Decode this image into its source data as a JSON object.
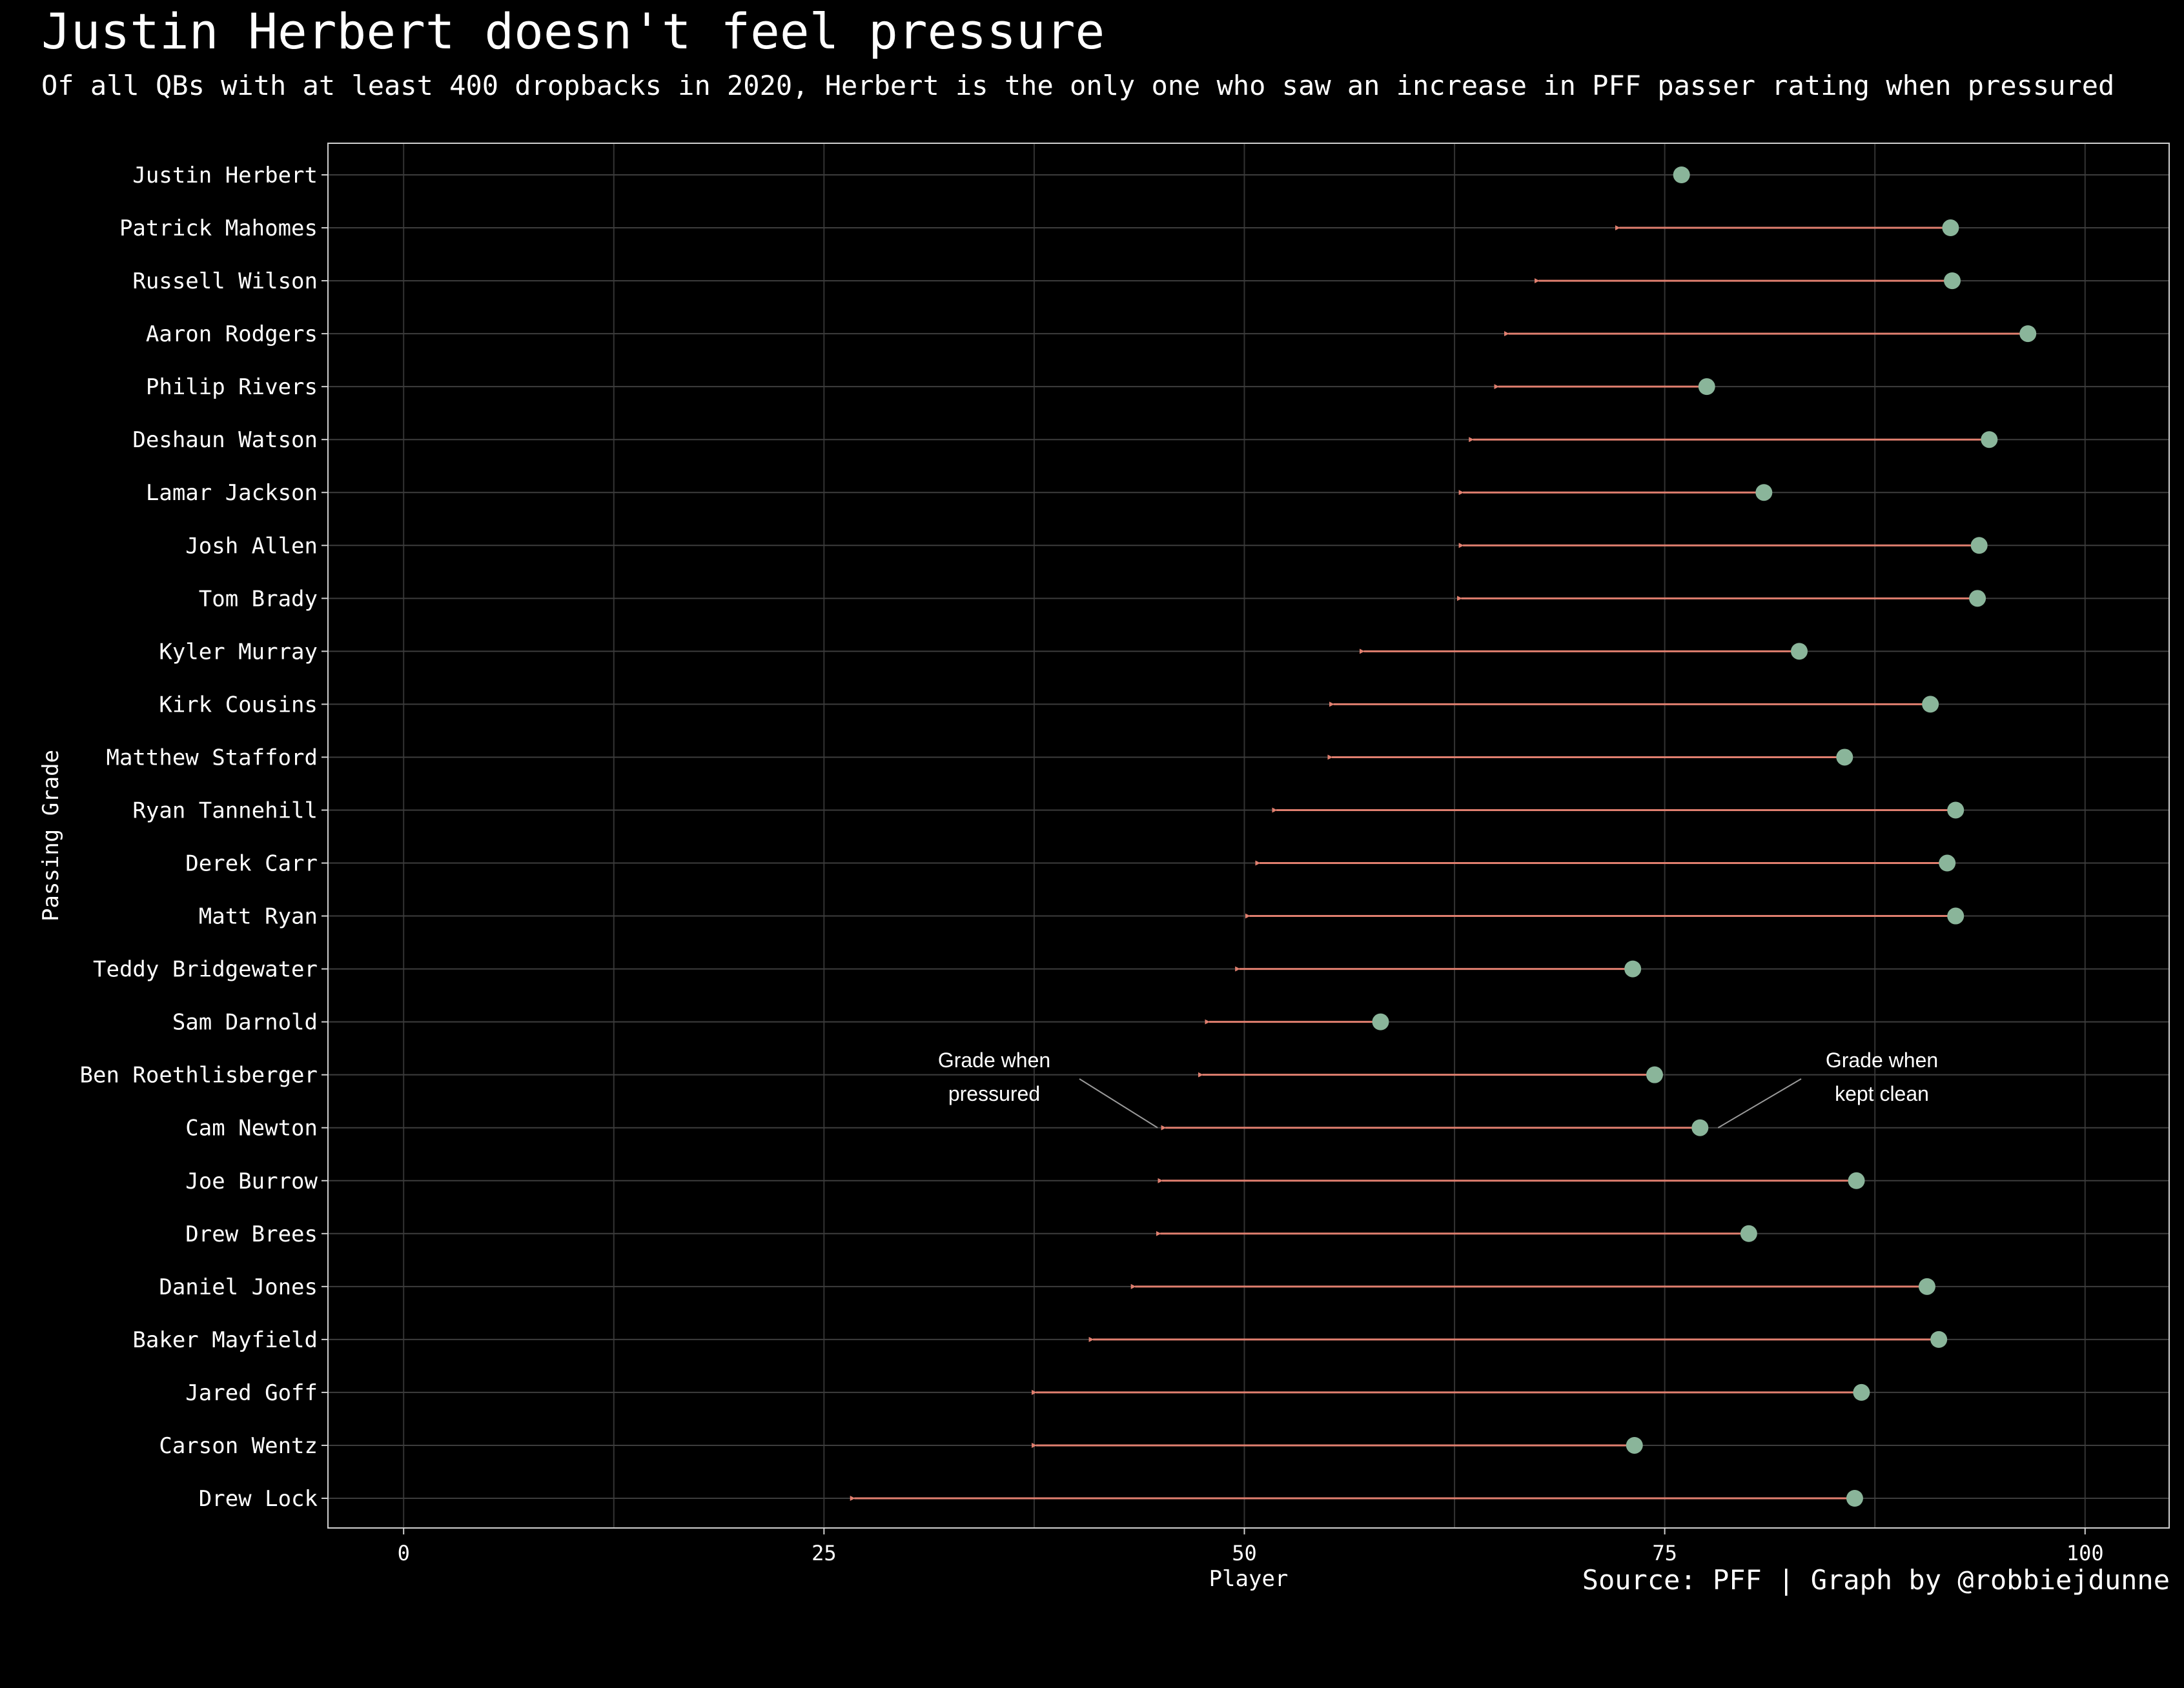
{
  "title": "Justin Herbert doesn't feel pressure",
  "subtitle": "Of all QBs with at least 400 dropbacks in 2020, Herbert is the only one who saw an increase in PFF passer rating when pressured",
  "caption": "Source: PFF | Graph by @robbiejdunne",
  "colors": {
    "background": "#000000",
    "clean_point": "#8ab59a",
    "pressure_arrow": "#e07f6f",
    "grid": "#3d3d3d",
    "text": "#ffffff"
  },
  "chart_data": {
    "type": "dumbbell",
    "xlabel": "Player",
    "ylabel": "Passing Grade",
    "xlim": [
      -4.5,
      105
    ],
    "xticks": [
      0,
      25,
      50,
      75,
      100
    ],
    "grid": true,
    "categories": [
      "Justin Herbert",
      "Patrick Mahomes",
      "Russell Wilson",
      "Aaron Rodgers",
      "Philip Rivers",
      "Deshaun Watson",
      "Lamar Jackson",
      "Josh Allen",
      "Tom Brady",
      "Kyler Murray",
      "Kirk Cousins",
      "Matthew Stafford",
      "Ryan Tannehill",
      "Derek Carr",
      "Matt Ryan",
      "Teddy Bridgewater",
      "Sam Darnold",
      "Ben Roethlisberger",
      "Cam Newton",
      "Joe Burrow",
      "Drew Brees",
      "Daniel Jones",
      "Baker Mayfield",
      "Jared Goff",
      "Carson Wentz",
      "Drew Lock"
    ],
    "series": [
      {
        "name": "Grade when kept clean",
        "values": [
          76.0,
          92.0,
          92.1,
          96.6,
          77.5,
          94.3,
          80.9,
          93.7,
          93.6,
          83.0,
          90.8,
          85.7,
          92.3,
          91.8,
          92.3,
          73.1,
          58.1,
          74.4,
          77.1,
          86.4,
          80.0,
          90.6,
          91.3,
          86.7,
          73.2,
          86.3
        ]
      },
      {
        "name": "Grade when pressured",
        "values": [
          76.7,
          72.3,
          67.5,
          65.7,
          65.1,
          63.6,
          63.0,
          63.0,
          62.9,
          57.1,
          55.3,
          55.2,
          51.9,
          50.9,
          50.3,
          49.7,
          47.9,
          47.5,
          45.3,
          45.1,
          45.0,
          43.5,
          41.0,
          37.6,
          37.6,
          26.8
        ]
      }
    ],
    "annotations": [
      {
        "text_lines": [
          "Grade when",
          "pressured"
        ],
        "target_category": "Cam Newton",
        "target_series": "Grade when pressured"
      },
      {
        "text_lines": [
          "Grade when",
          "kept clean"
        ],
        "target_category": "Cam Newton",
        "target_series": "Grade when kept clean"
      }
    ]
  }
}
